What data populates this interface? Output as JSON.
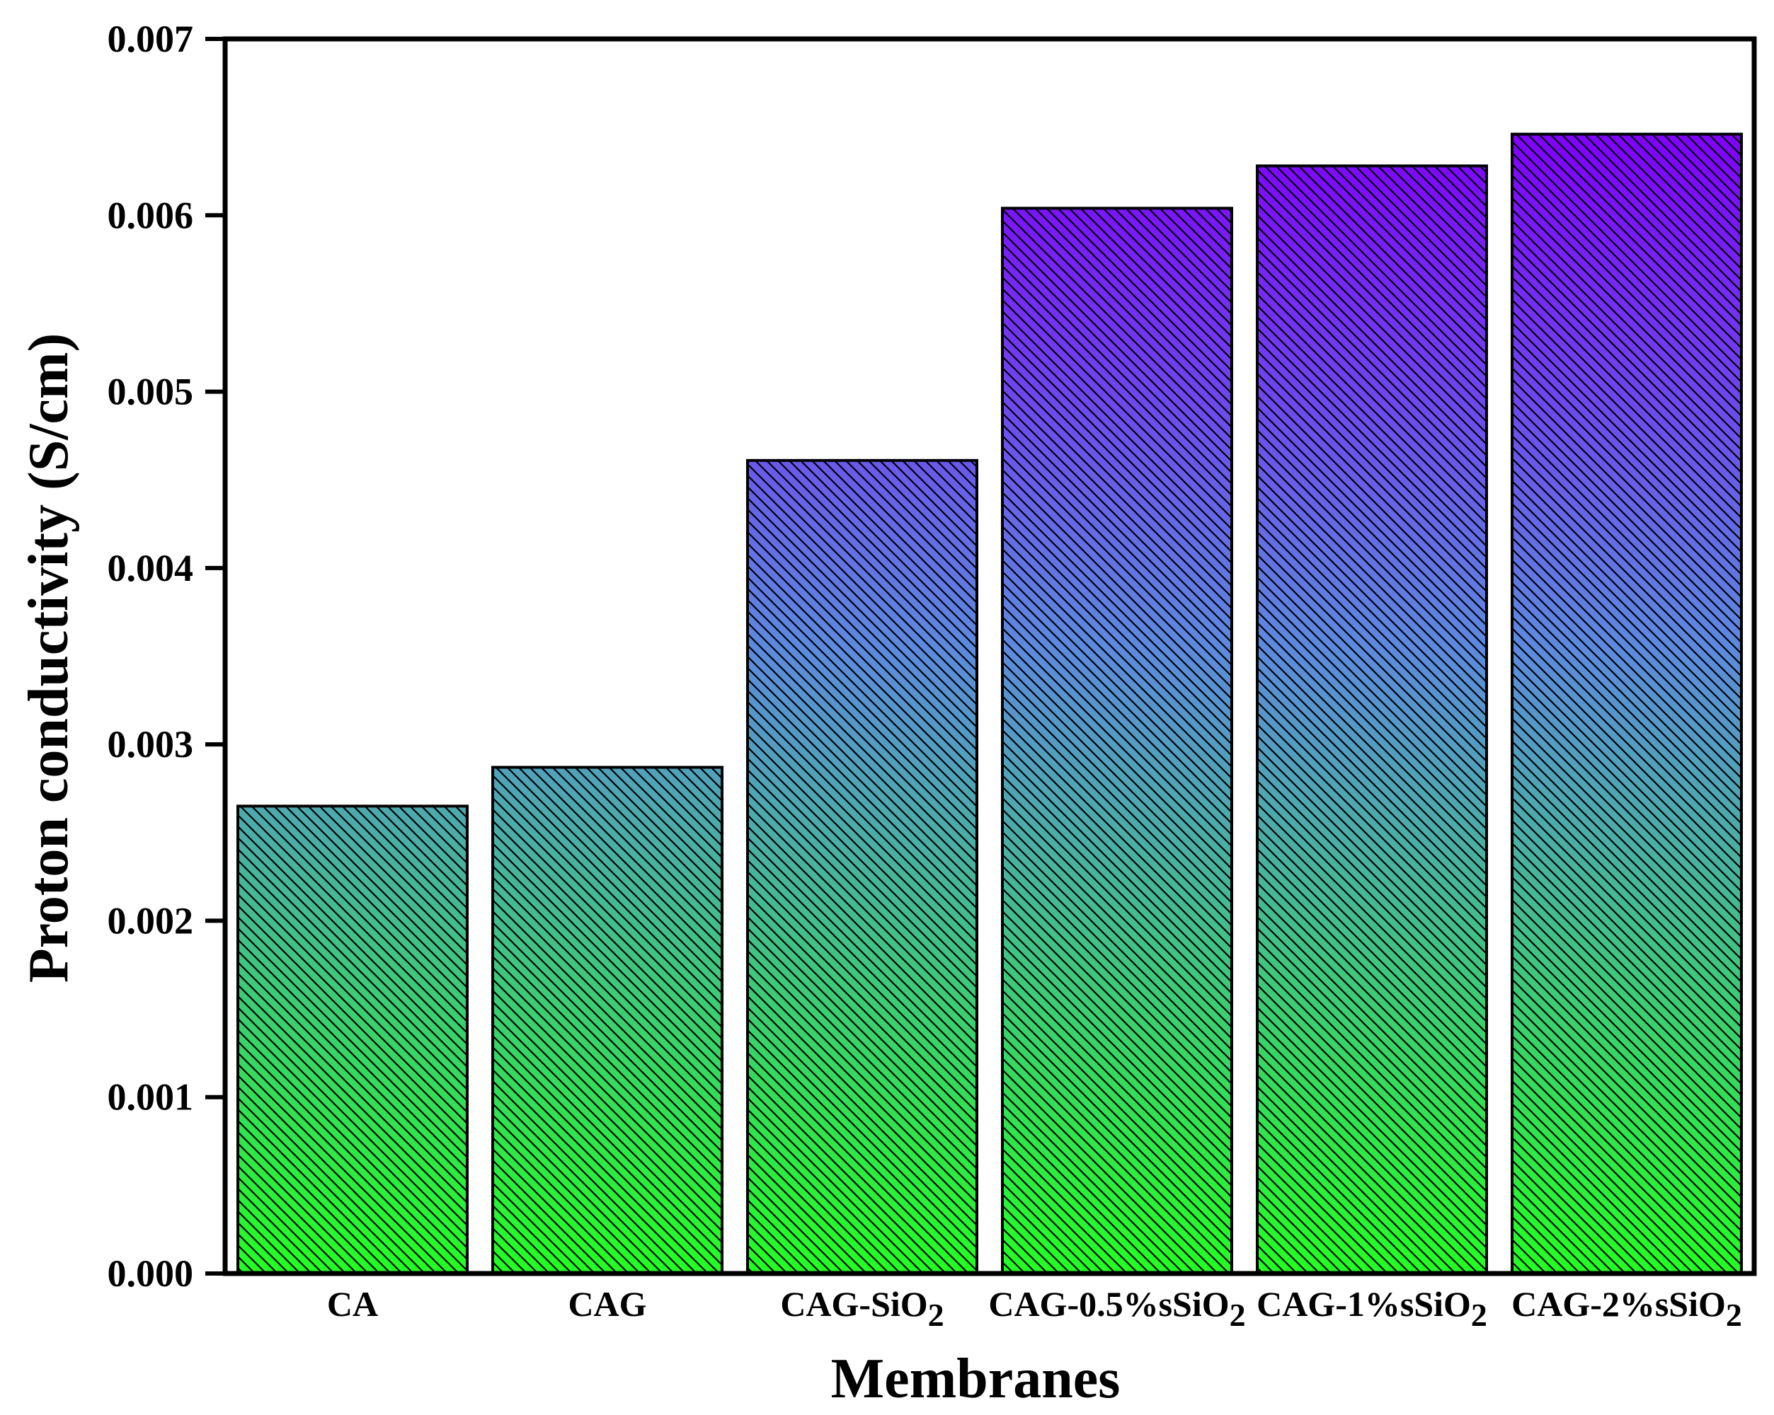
{
  "chart_data": {
    "type": "bar",
    "title": "",
    "xlabel": "Membranes",
    "ylabel": "Proton conductivity (S/cm)",
    "ylim": [
      0,
      0.007
    ],
    "yticks": [
      "0.000",
      "0.001",
      "0.002",
      "0.003",
      "0.004",
      "0.005",
      "0.006",
      "0.007"
    ],
    "categories": [
      {
        "main": "CA",
        "sub": ""
      },
      {
        "main": "CAG",
        "sub": ""
      },
      {
        "main": "CAG-SiO",
        "sub": "2"
      },
      {
        "main": "CAG-0.5%sSiO",
        "sub": "2"
      },
      {
        "main": "CAG-1%sSiO",
        "sub": "2"
      },
      {
        "main": "CAG-2%sSiO",
        "sub": "2"
      }
    ],
    "values": [
      0.00265,
      0.00287,
      0.00461,
      0.00604,
      0.00628,
      0.00646
    ],
    "colors": {
      "bar_top": "#8000ff",
      "bar_bottom": "#22ff22",
      "hatch": "#000000",
      "axis": "#000000"
    }
  }
}
